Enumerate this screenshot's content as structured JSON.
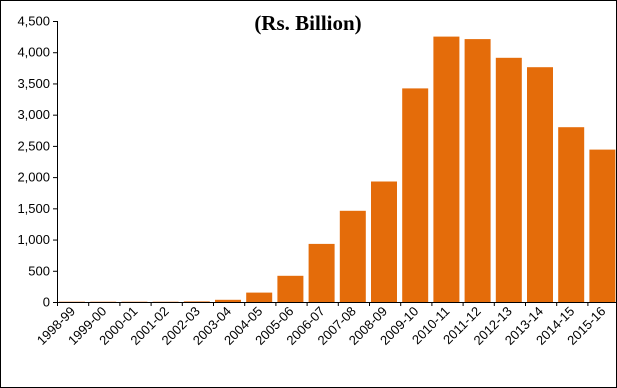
{
  "chart_data": {
    "type": "bar",
    "title": "(Rs. Billion)",
    "xlabel": "",
    "ylabel": "",
    "ylim": [
      0,
      4500
    ],
    "yticks": [
      "0",
      "500",
      "1,000",
      "1,500",
      "2,000",
      "2,500",
      "3,000",
      "3,500",
      "4,000",
      "4,500"
    ],
    "ytick_values": [
      0,
      500,
      1000,
      1500,
      2000,
      2500,
      3000,
      3500,
      4000,
      4500
    ],
    "grid": false,
    "bar_color": "#E46C0A",
    "categories": [
      "1998-99",
      "1999-00",
      "2000-01",
      "2001-02",
      "2002-03",
      "2003-04",
      "2004-05",
      "2005-06",
      "2006-07",
      "2007-08",
      "2008-09",
      "2009-10",
      "2010-11",
      "2011-12",
      "2012-13",
      "2013-14",
      "2014-15",
      "2015-16"
    ],
    "values": [
      5,
      5,
      5,
      5,
      10,
      35,
      150,
      420,
      930,
      1460,
      1930,
      3420,
      4250,
      4210,
      3910,
      3760,
      2800,
      2440
    ]
  }
}
